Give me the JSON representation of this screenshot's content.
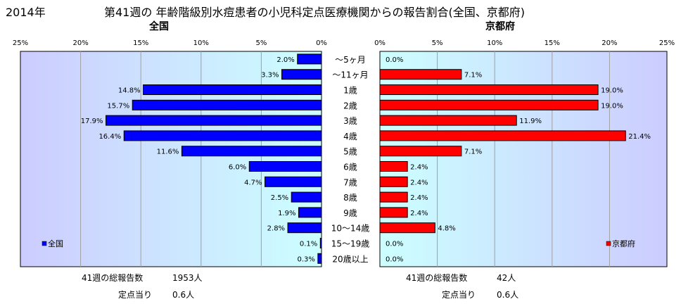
{
  "title_year": "2014年",
  "title_main": "第41週の  年齢階級別水痘患者の小児科定点医療機関からの報告割合(全国、京都府)",
  "chart_data": [
    {
      "type": "bar",
      "title": "全国",
      "orientation": "horizontal",
      "direction": "right-to-left",
      "categories": [
        "～5ヶ月",
        "～11ヶ月",
        "1歳",
        "2歳",
        "3歳",
        "4歳",
        "5歳",
        "6歳",
        "7歳",
        "8歳",
        "9歳",
        "10～14歳",
        "15～19歳",
        "20歳以上"
      ],
      "series": [
        {
          "name": "全国",
          "values": [
            2.0,
            3.3,
            14.8,
            15.7,
            17.9,
            16.4,
            11.6,
            6.0,
            4.7,
            2.5,
            1.9,
            2.8,
            0.1,
            0.3
          ],
          "color": "#0000ff"
        }
      ],
      "data_labels": [
        "2.0%",
        "3.3%",
        "14.8%",
        "15.7%",
        "17.9%",
        "16.4%",
        "11.6%",
        "6.0%",
        "4.7%",
        "2.5%",
        "1.9%",
        "2.8%",
        "0.1%",
        "0.3%"
      ],
      "xlim": [
        0,
        25
      ],
      "ticks": [
        "0%",
        "5%",
        "10%",
        "15%",
        "20%",
        "25%"
      ],
      "grid": true,
      "legend": "bottom-left"
    },
    {
      "type": "bar",
      "title": "京都府",
      "orientation": "horizontal",
      "direction": "left-to-right",
      "categories": [
        "～5ヶ月",
        "～11ヶ月",
        "1歳",
        "2歳",
        "3歳",
        "4歳",
        "5歳",
        "6歳",
        "7歳",
        "8歳",
        "9歳",
        "10～14歳",
        "15～19歳",
        "20歳以上"
      ],
      "series": [
        {
          "name": "京都府",
          "values": [
            0.0,
            7.1,
            19.0,
            19.0,
            11.9,
            21.4,
            7.1,
            2.4,
            2.4,
            2.4,
            2.4,
            4.8,
            0.0,
            0.0
          ],
          "color": "#ff0000"
        }
      ],
      "data_labels": [
        "0.0%",
        "7.1%",
        "19.0%",
        "19.0%",
        "11.9%",
        "21.4%",
        "7.1%",
        "2.4%",
        "2.4%",
        "2.4%",
        "2.4%",
        "4.8%",
        "0.0%",
        "0.0%"
      ],
      "xlim": [
        0,
        25
      ],
      "ticks": [
        "0%",
        "5%",
        "10%",
        "15%",
        "20%",
        "25%"
      ],
      "grid": true,
      "legend": "bottom-right"
    }
  ],
  "footer": {
    "left": {
      "total_label": "41週の総報告数",
      "total_value": "1953人",
      "per_label": "定点当り",
      "per_value": "0.6人"
    },
    "right": {
      "total_label": "41週の総報告数",
      "total_value": "42人",
      "per_label": "定点当り",
      "per_value": "0.6人"
    }
  },
  "colors": {
    "plot_bg": "#ccffff",
    "gradient_to": "#ccccff",
    "grid": "#a0a0a0",
    "axis": "#000000"
  }
}
